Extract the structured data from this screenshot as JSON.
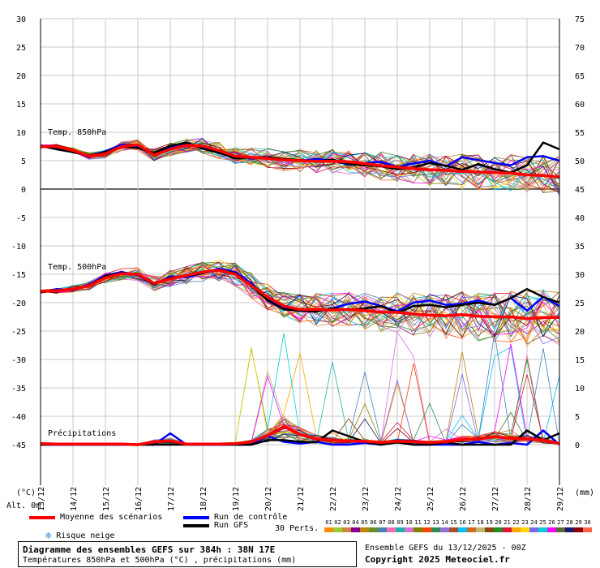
{
  "chart_data": {
    "type": "line",
    "title": "Diagramme des ensembles GEFS sur 384h : 38N 17E",
    "subtitle": "Températures 850hPa et 500hPa (°C) , précipitations (mm)",
    "left_axis": {
      "unit": "(°C)",
      "ticks": [
        30,
        25,
        20,
        15,
        10,
        5,
        0,
        -5,
        -10,
        -15,
        -20,
        -25,
        -30,
        -35,
        -40,
        -45
      ],
      "ylim": [
        -45,
        30
      ]
    },
    "right_axis": {
      "unit": "(mm)",
      "ticks": [
        75,
        70,
        65,
        60,
        55,
        50,
        45,
        40,
        35,
        30,
        25,
        20,
        15,
        10,
        5,
        0
      ]
    },
    "x_ticks": [
      "13/12",
      "14/12",
      "15/12",
      "16/12",
      "17/12",
      "18/12",
      "19/12",
      "20/12",
      "21/12",
      "22/12",
      "23/12",
      "24/12",
      "25/12",
      "26/12",
      "27/12",
      "28/12",
      "29/12"
    ],
    "altitude_label": "Alt. 0m",
    "panel_labels": [
      "Temp. 850hPa",
      "Temp. 500hPa",
      "Précipitations"
    ],
    "grid": true,
    "series": [
      {
        "name": "Moyenne des scénarios",
        "color": "#ff0000",
        "group": "t850",
        "values": [
          7.5,
          7.5,
          6.8,
          5.8,
          6.2,
          7.5,
          7.8,
          6.0,
          7.0,
          7.7,
          7.6,
          6.8,
          5.8,
          5.6,
          5.4,
          5.1,
          5.0,
          4.9,
          4.9,
          4.8,
          4.5,
          4.1,
          3.9,
          3.6,
          3.4,
          3.3,
          3.1,
          3.0,
          2.9,
          2.8,
          2.5,
          2.4,
          2.1
        ]
      },
      {
        "name": "Run de contrôle",
        "color": "#0000ff",
        "group": "t850",
        "values": [
          7.6,
          7.2,
          6.6,
          5.9,
          6.6,
          7.8,
          7.5,
          6.2,
          7.4,
          8.0,
          7.4,
          6.5,
          5.5,
          5.5,
          5.4,
          5.2,
          5.0,
          5.3,
          5.0,
          4.3,
          4.6,
          4.8,
          3.9,
          4.5,
          5.0,
          4.0,
          5.6,
          5.1,
          4.6,
          4.2,
          5.6,
          5.8,
          5.0
        ]
      },
      {
        "name": "Run GFS",
        "color": "#000000",
        "group": "t850",
        "values": [
          7.6,
          7.0,
          6.5,
          5.9,
          6.5,
          7.5,
          7.2,
          6.4,
          7.6,
          8.2,
          7.1,
          6.4,
          5.4,
          5.6,
          5.6,
          5.3,
          5.1,
          4.8,
          5.2,
          4.4,
          4.2,
          4.0,
          3.5,
          3.8,
          4.6,
          4.1,
          3.4,
          4.4,
          3.5,
          2.9,
          4.2,
          8.2,
          7.0
        ]
      },
      {
        "name": "Moyenne des scénarios",
        "color": "#ff0000",
        "group": "t500",
        "values": [
          -18.0,
          -17.9,
          -17.6,
          -17.0,
          -15.6,
          -14.9,
          -15.0,
          -16.6,
          -15.8,
          -15.2,
          -14.6,
          -14.3,
          -15.0,
          -17.0,
          -19.0,
          -20.6,
          -21.2,
          -21.2,
          -21.3,
          -21.2,
          -21.4,
          -21.7,
          -21.7,
          -22.0,
          -22.2,
          -22.3,
          -22.1,
          -22.4,
          -22.5,
          -22.5,
          -22.8,
          -22.6,
          -22.6
        ]
      },
      {
        "name": "Run de contrôle",
        "color": "#0000ff",
        "group": "t500",
        "values": [
          -18.2,
          -17.6,
          -17.8,
          -16.8,
          -15.2,
          -14.6,
          -15.2,
          -16.8,
          -15.4,
          -15.5,
          -14.8,
          -14.0,
          -14.6,
          -16.6,
          -19.4,
          -21.0,
          -21.5,
          -21.5,
          -21.0,
          -20.2,
          -19.8,
          -20.6,
          -21.5,
          -20.0,
          -19.6,
          -20.4,
          -20.2,
          -19.6,
          -20.4,
          -19.2,
          -21.4,
          -19.0,
          -20.6
        ]
      },
      {
        "name": "Run GFS",
        "color": "#000000",
        "group": "t500",
        "values": [
          -18.2,
          -17.8,
          -17.7,
          -17.0,
          -15.3,
          -14.8,
          -15.1,
          -16.8,
          -15.6,
          -15.3,
          -14.8,
          -14.2,
          -14.8,
          -17.0,
          -19.6,
          -21.2,
          -21.4,
          -21.6,
          -21.0,
          -21.3,
          -21.0,
          -20.6,
          -21.8,
          -20.6,
          -20.4,
          -20.8,
          -20.4,
          -20.0,
          -20.4,
          -19.2,
          -17.6,
          -19.0,
          -20.0
        ]
      },
      {
        "name": "Moyenne des scénarios",
        "color": "#ff0000",
        "group": "precip",
        "values": [
          0.2,
          0.1,
          0.1,
          0.1,
          0.1,
          0.1,
          0.0,
          0.5,
          0.7,
          0.1,
          0.1,
          0.1,
          0.2,
          0.5,
          1.6,
          3.2,
          1.8,
          1.0,
          0.8,
          0.6,
          0.6,
          0.4,
          0.6,
          0.5,
          0.4,
          0.5,
          0.9,
          1.0,
          1.4,
          1.1,
          1.0,
          0.8,
          0.2
        ]
      },
      {
        "name": "Run de contrôle",
        "color": "#0000ff",
        "group": "precip",
        "values": [
          0,
          0,
          0,
          0,
          0,
          0,
          0,
          0,
          2.0,
          0,
          0,
          0,
          0,
          0,
          1.5,
          0.5,
          0.2,
          0.5,
          0,
          0,
          0.3,
          0,
          0.8,
          0,
          0,
          0,
          0,
          0.5,
          0,
          0.3,
          0,
          2.5,
          0
        ]
      },
      {
        "name": "Run GFS",
        "color": "#000000",
        "group": "precip",
        "values": [
          0,
          0,
          0,
          0,
          0,
          0,
          0,
          0,
          0,
          0,
          0,
          0,
          0,
          0,
          0.8,
          0.8,
          0.5,
          0.4,
          2.5,
          1.5,
          0.5,
          0,
          0.4,
          0,
          0,
          0.4,
          0,
          0,
          0,
          0,
          2.5,
          0.8,
          2.0
        ]
      }
    ]
  },
  "legend": {
    "mean": "Moyenne des scénarios",
    "control": "Run de contrôle",
    "gfs": "Run GFS",
    "snow": "Risque neige",
    "perts": "30 Perts.",
    "pert_numbers": [
      "01",
      "02",
      "03",
      "04",
      "05",
      "06",
      "07",
      "08",
      "09",
      "10",
      "11",
      "12",
      "13",
      "14",
      "15",
      "16",
      "17",
      "18",
      "19",
      "20",
      "21",
      "22",
      "23",
      "24",
      "25",
      "26",
      "27",
      "28",
      "29",
      "30"
    ],
    "pert_colors": [
      "#ff8c00",
      "#9acd32",
      "#cd853f",
      "#8b008b",
      "#b8860b",
      "#6b8e23",
      "#4682b4",
      "#ff69b4",
      "#20b2aa",
      "#da70d6",
      "#808000",
      "#ff4500",
      "#2e8b57",
      "#9370db",
      "#a0522d",
      "#00bfff",
      "#d2691e",
      "#bdb76b",
      "#8b4513",
      "#228b22",
      "#dc143c",
      "#ffa500",
      "#ffd700",
      "#7b68ee",
      "#00ced1",
      "#ff00ff",
      "#556b2f",
      "#191970",
      "#8b0000",
      "#ff6347"
    ]
  },
  "info": {
    "line1": "Diagramme des ensembles GEFS sur 384h : 38N 17E",
    "line2": "Températures 850hPa et 500hPa (°C) , précipitations (mm)",
    "run": "Ensemble GEFS du 13/12/2025 - 00Z",
    "copyright": "Copyright 2025 Meteociel.fr"
  },
  "colors": {
    "grid": "#c8c8c8",
    "mean": "#ff0000",
    "control": "#0000ff",
    "gfs": "#000000"
  }
}
